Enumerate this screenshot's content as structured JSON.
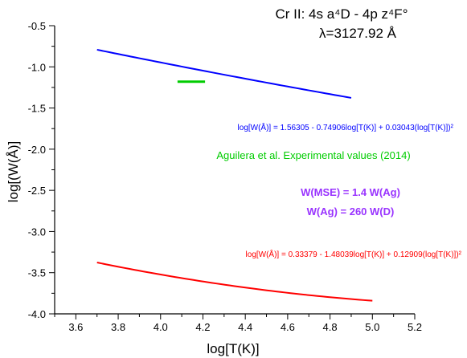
{
  "chart_data": {
    "type": "line",
    "title_line1": "Cr II: 4s a⁴D - 4p z⁴F°",
    "title_line2": "λ=3127.92 Å",
    "xlabel": "log[T(K)]",
    "ylabel": "log[(W(Å)]",
    "xlim": [
      3.5,
      5.2
    ],
    "ylim": [
      -4.0,
      -0.5
    ],
    "x_ticks": [
      3.6,
      3.8,
      4.0,
      4.2,
      4.4,
      4.6,
      4.8,
      5.0,
      5.2
    ],
    "x_tick_labels": [
      "3.6",
      "3.8",
      "4.0",
      "4.2",
      "4.4",
      "4.6",
      "4.8",
      "5.0",
      "5.2"
    ],
    "y_ticks": [
      -0.5,
      -1.0,
      -1.5,
      -2.0,
      -2.5,
      -3.0,
      -3.5,
      -4.0
    ],
    "y_tick_labels": [
      "-0.5",
      "-1.0",
      "-1.5",
      "-2.0",
      "-2.5",
      "-3.0",
      "-3.5",
      "-4.0"
    ],
    "grid": false,
    "series": [
      {
        "color": "#0000ff",
        "fit": {
          "a": 1.56305,
          "b": -0.74906,
          "c": 0.03043,
          "x_range": [
            3.7,
            4.9
          ]
        },
        "label": "log[W(Å)] = 1.56305 - 0.74906log[T(K)] + 0.03043(log[T(K)])²"
      },
      {
        "color": "#ff0000",
        "fit": {
          "a": 0.33379,
          "b": -1.48039,
          "c": 0.12909,
          "x_range": [
            3.7,
            5.0
          ]
        },
        "label": "log[W(Å)] = 0.33379 - 1.48039log[T(K)] + 0.12909(log[T(K)])²"
      },
      {
        "color": "#00cc00",
        "points": {
          "x": [
            4.08,
            4.21
          ],
          "y": [
            -1.18,
            -1.18
          ]
        },
        "label": "Aguilera et al. Experimental values (2014)"
      }
    ],
    "annotations": {
      "mse_line1": "W(MSE) = 1.4 W(Ag)",
      "mse_line2": "W(Ag) = 260 W(D)",
      "mse_color": "#9933ff"
    }
  }
}
